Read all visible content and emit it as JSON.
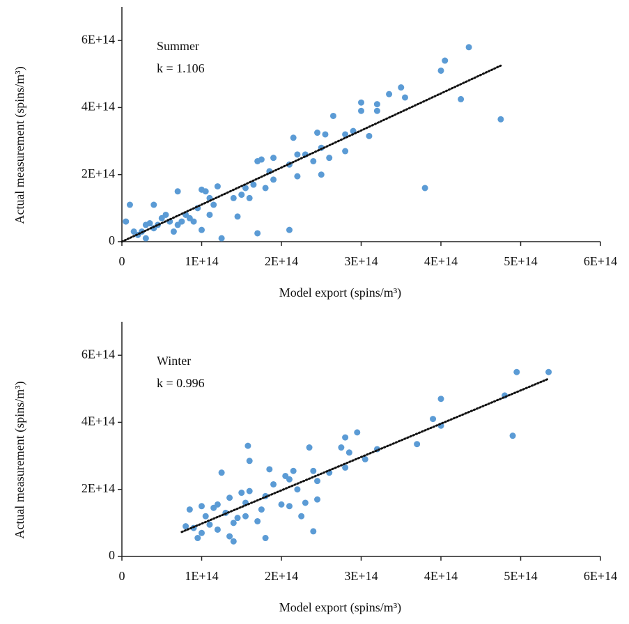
{
  "chart_data": [
    {
      "type": "scatter",
      "xlabel": "Model export (spins/m³)",
      "ylabel": "Actual measurement (spins/m³)",
      "annotations": [
        "Summer",
        "k = 1.106"
      ],
      "color": "#5b9bd5",
      "xlim": [
        0,
        600000000000000.0
      ],
      "ylim": [
        0,
        700000000000000.0
      ],
      "xticks": [
        0,
        {
          "value": 100000000000000.0,
          "label": "1E+14"
        },
        {
          "value": 200000000000000.0,
          "label": "2E+14"
        },
        {
          "value": 300000000000000.0,
          "label": "3E+14"
        },
        {
          "value": 400000000000000.0,
          "label": "4E+14"
        },
        {
          "value": 500000000000000.0,
          "label": "5E+14"
        },
        {
          "value": 600000000000000.0,
          "label": "6E+14"
        }
      ],
      "yticks": [
        0,
        {
          "value": 200000000000000.0,
          "label": "2E+14"
        },
        {
          "value": 400000000000000.0,
          "label": "4E+14"
        },
        {
          "value": 600000000000000.0,
          "label": "6E+14"
        }
      ],
      "trendline": {
        "x": [
          0,
          475000000000000.0
        ],
        "y": [
          0,
          525000000000000.0
        ]
      },
      "x": [
        5000000000000.0,
        10000000000000.0,
        15000000000000.0,
        20000000000000.0,
        25000000000000.0,
        30000000000000.0,
        30000000000000.0,
        35000000000000.0,
        40000000000000.0,
        40000000000000.0,
        45000000000000.0,
        50000000000000.0,
        55000000000000.0,
        60000000000000.0,
        65000000000000.0,
        70000000000000.0,
        70000000000000.0,
        75000000000000.0,
        80000000000000.0,
        85000000000000.0,
        90000000000000.0,
        95000000000000.0,
        100000000000000.0,
        100000000000000.0,
        105000000000000.0,
        110000000000000.0,
        110000000000000.0,
        115000000000000.0,
        120000000000000.0,
        125000000000000.0,
        140000000000000.0,
        145000000000000.0,
        150000000000000.0,
        155000000000000.0,
        160000000000000.0,
        165000000000000.0,
        170000000000000.0,
        170000000000000.0,
        175000000000000.0,
        180000000000000.0,
        185000000000000.0,
        190000000000000.0,
        190000000000000.0,
        210000000000000.0,
        210000000000000.0,
        215000000000000.0,
        220000000000000.0,
        220000000000000.0,
        230000000000000.0,
        240000000000000.0,
        245000000000000.0,
        250000000000000.0,
        250000000000000.0,
        255000000000000.0,
        260000000000000.0,
        265000000000000.0,
        280000000000000.0,
        280000000000000.0,
        290000000000000.0,
        300000000000000.0,
        300000000000000.0,
        310000000000000.0,
        320000000000000.0,
        320000000000000.0,
        335000000000000.0,
        350000000000000.0,
        355000000000000.0,
        380000000000000.0,
        400000000000000.0,
        405000000000000.0,
        425000000000000.0,
        435000000000000.0,
        475000000000000.0
      ],
      "y": [
        60000000000000.0,
        110000000000000.0,
        30000000000000.0,
        20000000000000.0,
        30000000000000.0,
        50000000000000.0,
        10000000000000.0,
        55000000000000.0,
        40000000000000.0,
        110000000000000.0,
        50000000000000.0,
        70000000000000.0,
        80000000000000.0,
        60000000000000.0,
        30000000000000.0,
        150000000000000.0,
        50000000000000.0,
        60000000000000.0,
        80000000000000.0,
        70000000000000.0,
        60000000000000.0,
        100000000000000.0,
        155000000000000.0,
        35000000000000.0,
        150000000000000.0,
        130000000000000.0,
        80000000000000.0,
        110000000000000.0,
        165000000000000.0,
        10000000000000.0,
        130000000000000.0,
        75000000000000.0,
        140000000000000.0,
        160000000000000.0,
        130000000000000.0,
        170000000000000.0,
        240000000000000.0,
        25000000000000.0,
        245000000000000.0,
        160000000000000.0,
        210000000000000.0,
        250000000000000.0,
        185000000000000.0,
        230000000000000.0,
        35000000000000.0,
        310000000000000.0,
        260000000000000.0,
        195000000000000.0,
        260000000000000.0,
        240000000000000.0,
        325000000000000.0,
        280000000000000.0,
        200000000000000.0,
        320000000000000.0,
        250000000000000.0,
        375000000000000.0,
        320000000000000.0,
        270000000000000.0,
        330000000000000.0,
        415000000000000.0,
        390000000000000.0,
        315000000000000.0,
        410000000000000.0,
        390000000000000.0,
        440000000000000.0,
        460000000000000.0,
        430000000000000.0,
        160000000000000.0,
        510000000000000.0,
        540000000000000.0,
        425000000000000.0,
        580000000000000.0,
        365000000000000.0
      ]
    },
    {
      "type": "scatter",
      "xlabel": "Model export (spins/m³)",
      "ylabel": "Actual measurement (spins/m³)",
      "annotations": [
        "Winter",
        "k = 0.996"
      ],
      "color": "#5b9bd5",
      "xlim": [
        0,
        600000000000000.0
      ],
      "ylim": [
        0,
        700000000000000.0
      ],
      "xticks": [
        0,
        {
          "value": 100000000000000.0,
          "label": "1E+14"
        },
        {
          "value": 200000000000000.0,
          "label": "2E+14"
        },
        {
          "value": 300000000000000.0,
          "label": "3E+14"
        },
        {
          "value": 400000000000000.0,
          "label": "4E+14"
        },
        {
          "value": 500000000000000.0,
          "label": "5E+14"
        },
        {
          "value": 600000000000000.0,
          "label": "6E+14"
        }
      ],
      "yticks": [
        0,
        {
          "value": 200000000000000.0,
          "label": "2E+14"
        },
        {
          "value": 400000000000000.0,
          "label": "4E+14"
        },
        {
          "value": 600000000000000.0,
          "label": "6E+14"
        }
      ],
      "trendline": {
        "x": [
          75000000000000.0,
          535000000000000.0
        ],
        "y": [
          73000000000000.0,
          530000000000000.0
        ]
      },
      "x": [
        80000000000000.0,
        85000000000000.0,
        90000000000000.0,
        95000000000000.0,
        100000000000000.0,
        100000000000000.0,
        105000000000000.0,
        110000000000000.0,
        115000000000000.0,
        120000000000000.0,
        120000000000000.0,
        125000000000000.0,
        130000000000000.0,
        135000000000000.0,
        135000000000000.0,
        140000000000000.0,
        140000000000000.0,
        145000000000000.0,
        150000000000000.0,
        155000000000000.0,
        155000000000000.0,
        158000000000000.0,
        160000000000000.0,
        160000000000000.0,
        170000000000000.0,
        175000000000000.0,
        180000000000000.0,
        180000000000000.0,
        185000000000000.0,
        190000000000000.0,
        200000000000000.0,
        205000000000000.0,
        210000000000000.0,
        210000000000000.0,
        215000000000000.0,
        220000000000000.0,
        225000000000000.0,
        230000000000000.0,
        235000000000000.0,
        240000000000000.0,
        240000000000000.0,
        245000000000000.0,
        245000000000000.0,
        260000000000000.0,
        275000000000000.0,
        280000000000000.0,
        280000000000000.0,
        285000000000000.0,
        295000000000000.0,
        305000000000000.0,
        320000000000000.0,
        370000000000000.0,
        390000000000000.0,
        400000000000000.0,
        400000000000000.0,
        480000000000000.0,
        490000000000000.0,
        495000000000000.0,
        535000000000000.0
      ],
      "y": [
        90000000000000.0,
        140000000000000.0,
        85000000000000.0,
        55000000000000.0,
        150000000000000.0,
        70000000000000.0,
        120000000000000.0,
        95000000000000.0,
        145000000000000.0,
        155000000000000.0,
        80000000000000.0,
        250000000000000.0,
        130000000000000.0,
        60000000000000.0,
        175000000000000.0,
        100000000000000.0,
        45000000000000.0,
        115000000000000.0,
        190000000000000.0,
        160000000000000.0,
        120000000000000.0,
        330000000000000.0,
        285000000000000.0,
        195000000000000.0,
        105000000000000.0,
        140000000000000.0,
        55000000000000.0,
        180000000000000.0,
        260000000000000.0,
        215000000000000.0,
        155000000000000.0,
        240000000000000.0,
        230000000000000.0,
        150000000000000.0,
        255000000000000.0,
        200000000000000.0,
        120000000000000.0,
        160000000000000.0,
        325000000000000.0,
        75000000000000.0,
        255000000000000.0,
        170000000000000.0,
        225000000000000.0,
        250000000000000.0,
        325000000000000.0,
        355000000000000.0,
        265000000000000.0,
        310000000000000.0,
        370000000000000.0,
        290000000000000.0,
        320000000000000.0,
        335000000000000.0,
        410000000000000.0,
        390000000000000.0,
        470000000000000.0,
        480000000000000.0,
        360000000000000.0,
        550000000000000.0,
        550000000000000.0
      ]
    }
  ]
}
